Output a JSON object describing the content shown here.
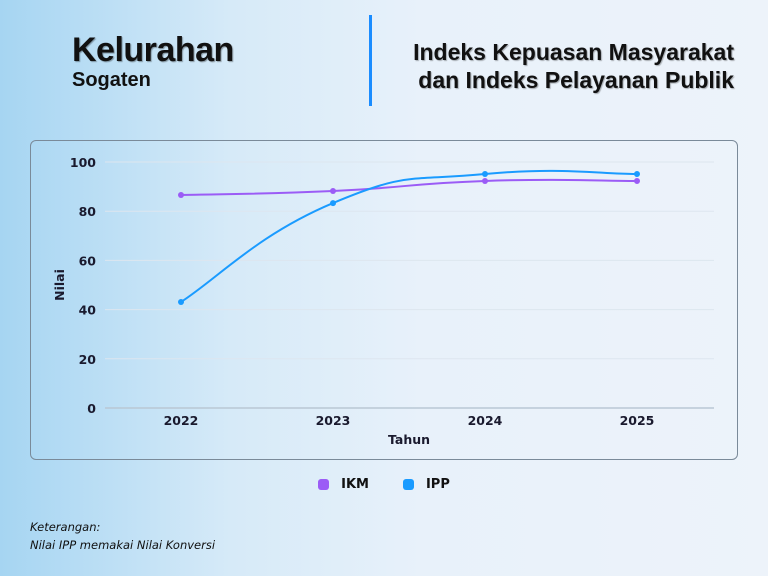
{
  "header": {
    "title": "Kelurahan",
    "subtitle": "Sogaten",
    "chart_title_line1": "Indeks Kepuasan Masyarakat",
    "chart_title_line2": "dan Indeks Pelayanan Publik",
    "accent": "#1a8cff"
  },
  "chart_data": {
    "type": "line",
    "title": "Indeks Kepuasan Masyarakat dan Indeks Pelayanan Publik",
    "xlabel": "Tahun",
    "ylabel": "Nilai",
    "categories": [
      "2022",
      "2023",
      "2024",
      "2025"
    ],
    "yticks": [
      "0",
      "20",
      "40",
      "60",
      "80",
      "100"
    ],
    "ylim": [
      0,
      100
    ],
    "grid": true,
    "legend_position": "bottom",
    "series": [
      {
        "name": "IKM",
        "color": "#9b5cf6",
        "values": [
          86.6,
          88.2,
          92.3,
          92.3
        ]
      },
      {
        "name": "IPP",
        "color": "#1a9bff",
        "values": [
          43.1,
          83.3,
          95.1,
          95.1
        ]
      }
    ]
  },
  "note": {
    "label": "Keterangan:",
    "text": "Nilai IPP memakai Nilai Konversi"
  }
}
